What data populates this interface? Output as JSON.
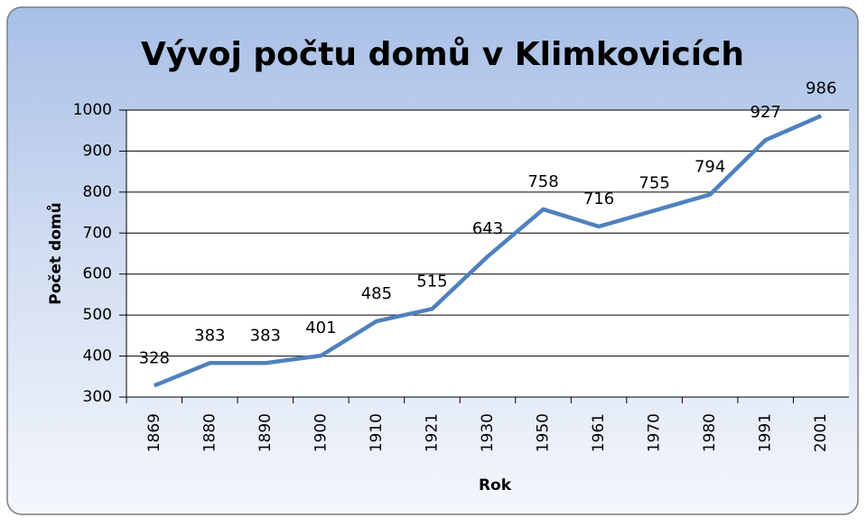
{
  "chart_data": {
    "type": "line",
    "title": "Vývoj počtu domů v Klimkovicích",
    "x_label": "Rok",
    "y_label": "Počet domů",
    "categories": [
      "1869",
      "1880",
      "1890",
      "1900",
      "1910",
      "1921",
      "1930",
      "1950",
      "1961",
      "1970",
      "1980",
      "1991",
      "2001"
    ],
    "values": [
      328,
      383,
      383,
      401,
      485,
      515,
      643,
      758,
      716,
      755,
      794,
      927,
      986
    ],
    "color": "#4f81bd",
    "ylim": [
      300,
      1000
    ],
    "yticks": [
      300,
      400,
      500,
      600,
      700,
      800,
      900,
      1000
    ],
    "grid": true
  }
}
